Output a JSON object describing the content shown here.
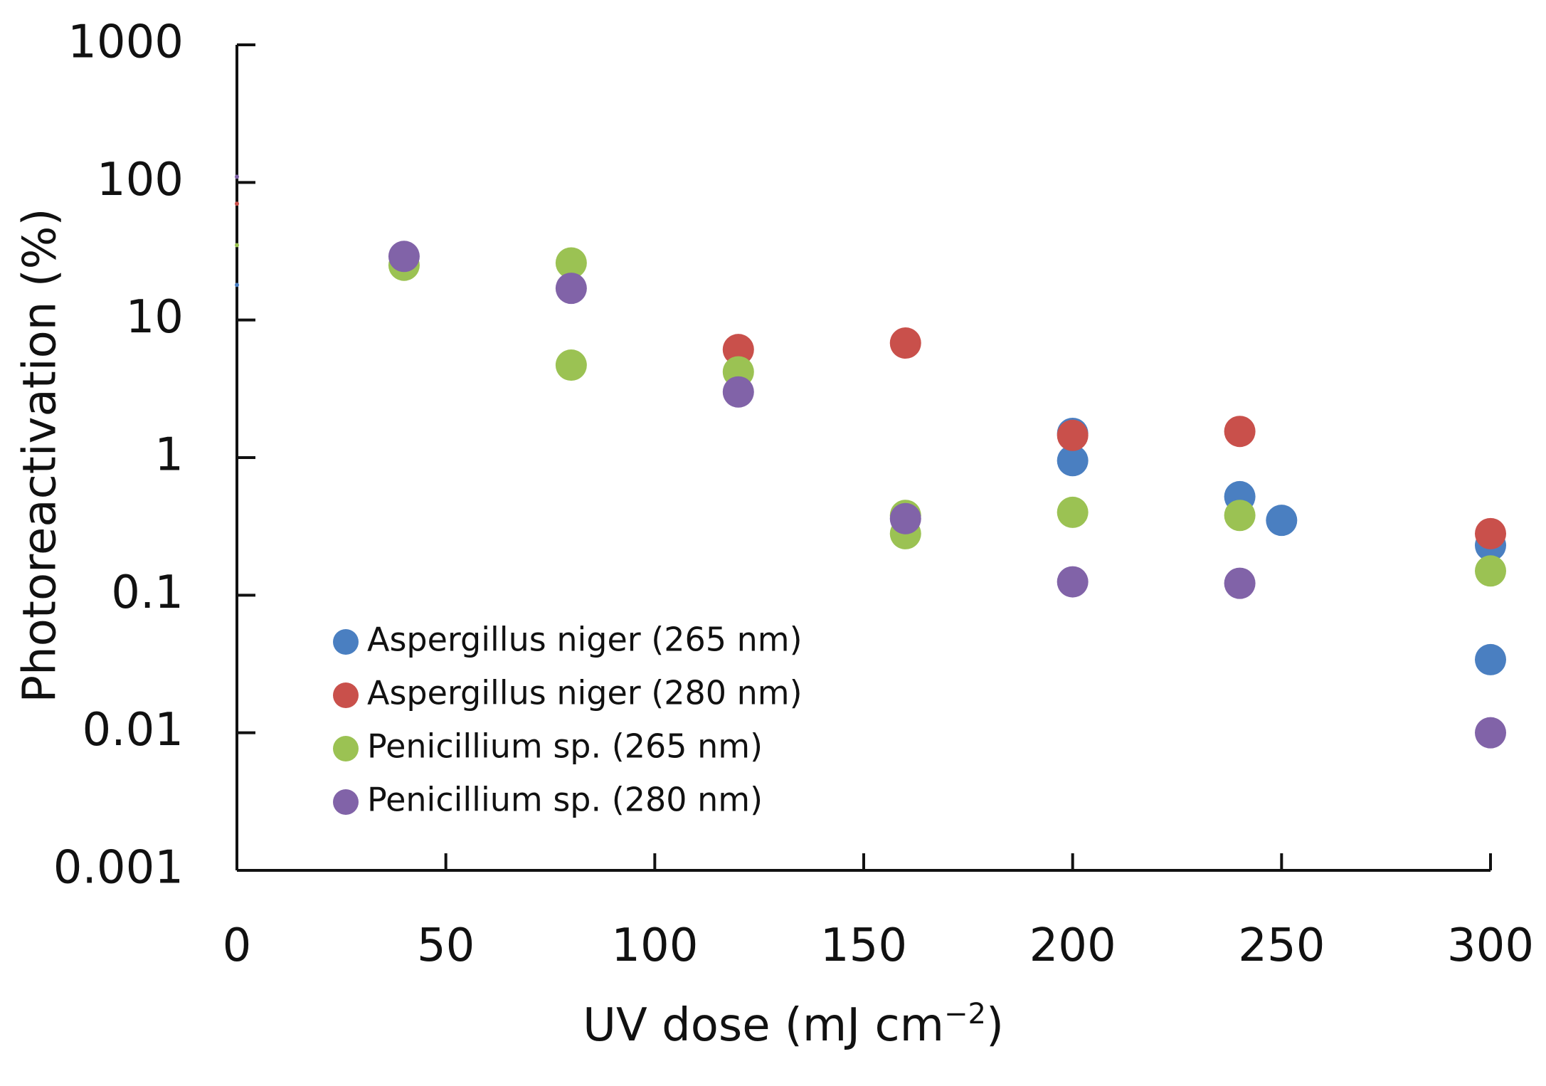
{
  "chart_data": {
    "type": "scatter",
    "title": "",
    "xlabel": "UV dose (mJ cm",
    "xlabel_superscript": "−2",
    "xlabel_close": ")",
    "ylabel": "Photoreactivation (%)",
    "xlim": [
      0,
      300
    ],
    "ylim": [
      0.001,
      1000
    ],
    "yscale": "log",
    "x_ticks": [
      0,
      50,
      100,
      150,
      200,
      250,
      300
    ],
    "x_tick_labels": [
      "0",
      "50",
      "100",
      "150",
      "200",
      "250",
      "300"
    ],
    "y_ticks": [
      1000,
      100,
      10,
      1,
      0.1,
      0.01,
      0.001
    ],
    "y_tick_labels": [
      "1000",
      "100",
      "10",
      "1",
      "0.1",
      "0.01",
      "0.001"
    ],
    "grid": false,
    "legend_position": "bottom-left",
    "series": [
      {
        "name": "Aspergillus niger (265 nm)",
        "color": "#4a7fc1",
        "points": [
          [
            0,
            18
          ],
          [
            200,
            1.5
          ],
          [
            200,
            0.95
          ],
          [
            240,
            0.52
          ],
          [
            250,
            0.35
          ],
          [
            300,
            0.23
          ],
          [
            300,
            0.034
          ]
        ]
      },
      {
        "name": "Aspergillus niger (280 nm)",
        "color": "#c9504b",
        "points": [
          [
            0,
            70
          ],
          [
            120,
            6.1
          ],
          [
            160,
            6.8
          ],
          [
            200,
            1.45
          ],
          [
            240,
            1.55
          ],
          [
            300,
            0.28
          ]
        ]
      },
      {
        "name": "Penicillium sp. (265 nm)",
        "color": "#9bc253",
        "points": [
          [
            0,
            35
          ],
          [
            40,
            25
          ],
          [
            80,
            26
          ],
          [
            80,
            4.7
          ],
          [
            120,
            4.2
          ],
          [
            160,
            0.38
          ],
          [
            160,
            0.28
          ],
          [
            200,
            0.4
          ],
          [
            240,
            0.38
          ],
          [
            300,
            0.15
          ]
        ]
      },
      {
        "name": "Penicillium sp. (280 nm)",
        "color": "#8163a8",
        "points": [
          [
            0,
            110
          ],
          [
            40,
            29
          ],
          [
            80,
            17
          ],
          [
            120,
            3.0
          ],
          [
            160,
            0.36
          ],
          [
            200,
            0.125
          ],
          [
            240,
            0.122
          ],
          [
            300,
            0.01
          ]
        ]
      }
    ]
  }
}
